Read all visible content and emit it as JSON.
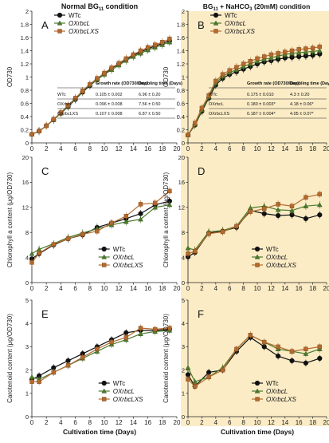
{
  "figure": {
    "col_titles": {
      "left_main": "Normal BG",
      "left_sub": "11",
      "left_tail": " condition",
      "right_a": "BG",
      "right_b": "11",
      "right_c": " + NaHCO",
      "right_d": "3",
      "right_e": " (20mM) condition"
    },
    "xlabel": "Cultivation time (Days)",
    "colors": {
      "WTc": "#111111",
      "OXrbcL": "#4a7a2c",
      "OXrbcLXS": "#b36a2e",
      "right_bg": "#fbecc6",
      "left_bg": "#ffffff"
    },
    "legend": [
      "WTc",
      "OXrbcL",
      "OXrbcLXS"
    ],
    "growth_table_headers": [
      "Growth rate (OD730/Day)",
      "Doubling time (Days)"
    ],
    "table_A": [
      [
        "WTc",
        "0.105 ± 0.002",
        "6.96 ± 0.20"
      ],
      [
        "OXrbcL",
        "0.096 ± 0.008",
        "7.56 ± 0.50"
      ],
      [
        "OXrbcLXS",
        "0.107 ± 0.008",
        "6.87 ± 0.50"
      ]
    ],
    "table_B": [
      [
        "WTc",
        "0.175 ± 0.010",
        "4.3 ± 0.20"
      ],
      [
        "OXrbcL",
        "0.180 ± 0.003*",
        "4.18 ± 0.06*"
      ],
      [
        "OXrbcLXS",
        "0.187 ± 0.004*",
        "4.05 ± 0.07*"
      ]
    ]
  },
  "chart_data": [
    {
      "panel": "A",
      "type": "line",
      "ylabel": "OD730",
      "xlim": [
        0,
        20
      ],
      "ylim": [
        0,
        2
      ],
      "x": [
        0,
        1,
        2,
        3,
        4,
        5,
        6,
        7,
        8,
        9,
        10,
        11,
        12,
        13,
        14,
        15,
        16,
        17,
        18,
        19
      ],
      "series": [
        {
          "name": "WTc",
          "values": [
            0.13,
            0.18,
            0.26,
            0.35,
            0.45,
            0.55,
            0.66,
            0.77,
            0.87,
            0.96,
            1.05,
            1.13,
            1.2,
            1.27,
            1.33,
            1.38,
            1.43,
            1.47,
            1.51,
            1.55
          ]
        },
        {
          "name": "OXrbcL",
          "values": [
            0.13,
            0.18,
            0.26,
            0.35,
            0.45,
            0.56,
            0.67,
            0.78,
            0.88,
            0.96,
            1.04,
            1.11,
            1.18,
            1.25,
            1.31,
            1.36,
            1.41,
            1.45,
            1.49,
            1.53
          ]
        },
        {
          "name": "OXrbcLXS",
          "values": [
            0.13,
            0.18,
            0.26,
            0.36,
            0.46,
            0.57,
            0.68,
            0.79,
            0.89,
            0.98,
            1.06,
            1.14,
            1.21,
            1.28,
            1.34,
            1.4,
            1.45,
            1.49,
            1.53,
            1.58
          ]
        }
      ]
    },
    {
      "panel": "B",
      "type": "line",
      "ylabel": "OD730",
      "xlim": [
        0,
        20
      ],
      "ylim": [
        0,
        2
      ],
      "x": [
        0,
        1,
        2,
        3,
        4,
        5,
        6,
        7,
        8,
        9,
        10,
        11,
        12,
        13,
        14,
        15,
        16,
        17,
        18,
        19
      ],
      "series": [
        {
          "name": "WTc",
          "values": [
            0.12,
            0.27,
            0.48,
            0.68,
            0.88,
            0.98,
            1.04,
            1.08,
            1.12,
            1.16,
            1.2,
            1.23,
            1.25,
            1.27,
            1.29,
            1.3,
            1.31,
            1.32,
            1.33,
            1.35
          ]
        },
        {
          "name": "OXrbcL",
          "values": [
            0.12,
            0.28,
            0.5,
            0.7,
            0.91,
            1.01,
            1.07,
            1.11,
            1.16,
            1.2,
            1.24,
            1.27,
            1.29,
            1.32,
            1.34,
            1.36,
            1.37,
            1.38,
            1.39,
            1.4
          ]
        },
        {
          "name": "OXrbcLXS",
          "values": [
            0.12,
            0.3,
            0.53,
            0.72,
            0.94,
            1.04,
            1.1,
            1.15,
            1.2,
            1.24,
            1.28,
            1.31,
            1.34,
            1.36,
            1.38,
            1.4,
            1.42,
            1.43,
            1.44,
            1.46
          ]
        }
      ]
    },
    {
      "panel": "C",
      "type": "line",
      "ylabel": "Chlorophyll a content (μg/OD730)",
      "xlim": [
        0,
        20
      ],
      "ylim": [
        0,
        20
      ],
      "x": [
        0,
        1,
        3,
        5,
        7,
        9,
        11,
        13,
        15,
        17,
        19
      ],
      "series": [
        {
          "name": "WTc",
          "values": [
            3.8,
            4.6,
            6.0,
            7.0,
            7.6,
            8.8,
            9.5,
            10.2,
            11.0,
            12.4,
            13.0
          ]
        },
        {
          "name": "OXrbcL",
          "values": [
            4.6,
            5.3,
            6.2,
            7.2,
            7.9,
            8.6,
            9.2,
            9.7,
            10.1,
            12.0,
            12.4
          ]
        },
        {
          "name": "OXrbcLXS",
          "values": [
            3.2,
            4.7,
            6.1,
            7.0,
            7.7,
            8.2,
            9.5,
            10.6,
            12.5,
            12.7,
            14.6
          ]
        }
      ]
    },
    {
      "panel": "D",
      "type": "line",
      "ylabel": "Chlorophyll a content (μg/OD730)",
      "xlim": [
        0,
        20
      ],
      "ylim": [
        0,
        20
      ],
      "x": [
        0,
        1,
        3,
        5,
        7,
        9,
        11,
        13,
        15,
        17,
        19
      ],
      "series": [
        {
          "name": "WTc",
          "values": [
            4.1,
            4.8,
            7.9,
            8.2,
            8.8,
            11.5,
            11.0,
            10.7,
            10.8,
            10.2,
            10.8
          ]
        },
        {
          "name": "OXrbcL",
          "values": [
            5.5,
            5.2,
            8.1,
            8.3,
            9.0,
            11.9,
            12.2,
            11.6,
            11.5,
            12.2,
            12.4
          ]
        },
        {
          "name": "OXrbcLXS",
          "values": [
            4.6,
            5.0,
            7.8,
            8.1,
            9.0,
            11.3,
            11.8,
            12.5,
            12.2,
            13.6,
            14.1
          ]
        }
      ]
    },
    {
      "panel": "E",
      "type": "line",
      "ylabel": "Carotenoid content (μg/OD730)",
      "xlim": [
        0,
        20
      ],
      "ylim": [
        0,
        5
      ],
      "x": [
        0,
        1,
        3,
        5,
        7,
        9,
        11,
        13,
        15,
        17,
        19
      ],
      "series": [
        {
          "name": "WTc",
          "values": [
            1.6,
            1.75,
            2.1,
            2.4,
            2.7,
            3.0,
            3.3,
            3.6,
            3.7,
            3.7,
            3.75
          ]
        },
        {
          "name": "OXrbcL",
          "values": [
            1.7,
            1.6,
            1.9,
            2.2,
            2.5,
            2.8,
            3.1,
            3.3,
            3.55,
            3.65,
            3.7
          ]
        },
        {
          "name": "OXrbcLXS",
          "values": [
            1.5,
            1.5,
            1.9,
            2.2,
            2.55,
            2.9,
            3.2,
            3.4,
            3.8,
            3.75,
            3.8
          ]
        }
      ]
    },
    {
      "panel": "F",
      "type": "line",
      "ylabel": "Carotenoid content (μg/OD730)",
      "xlim": [
        0,
        20
      ],
      "ylim": [
        0,
        5
      ],
      "x": [
        0,
        1,
        3,
        5,
        7,
        9,
        11,
        13,
        15,
        17,
        19
      ],
      "series": [
        {
          "name": "WTc",
          "values": [
            1.8,
            1.3,
            1.9,
            2.0,
            2.8,
            3.4,
            3.0,
            2.6,
            2.4,
            2.3,
            2.5
          ]
        },
        {
          "name": "OXrbcL",
          "values": [
            2.1,
            1.5,
            1.7,
            2.1,
            2.9,
            3.5,
            3.2,
            2.9,
            2.8,
            2.7,
            2.9
          ]
        },
        {
          "name": "OXrbcLXS",
          "values": [
            1.6,
            1.3,
            1.7,
            2.0,
            2.9,
            3.5,
            3.2,
            3.0,
            2.8,
            2.9,
            3.0
          ]
        }
      ]
    }
  ]
}
